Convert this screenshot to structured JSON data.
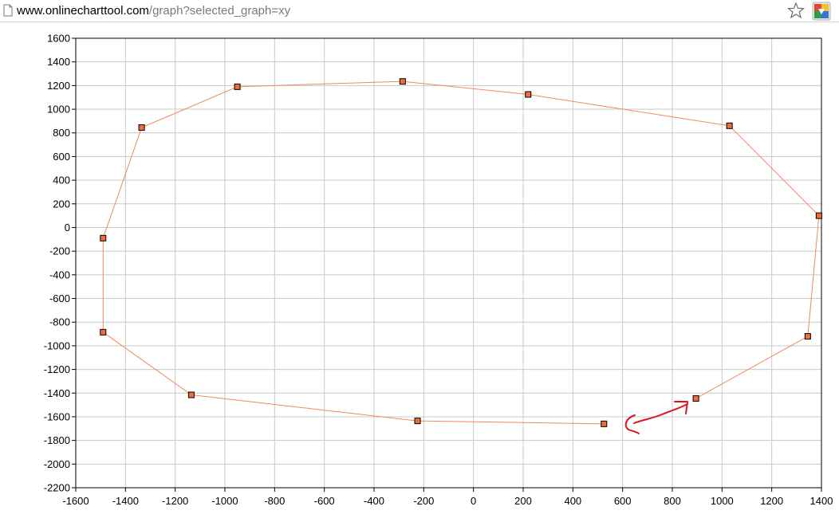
{
  "browser": {
    "url_domain": "www.onlinecharttool.com",
    "url_path": "/graph?selected_graph=xy",
    "icons": [
      "page-icon",
      "bookmark-star-icon",
      "extension-icon"
    ]
  },
  "colors": {
    "series_line": "#f08a5d",
    "marker_fill": "#f26b3a",
    "marker_border": "#000000",
    "grid": "#c8c8c8",
    "annotation": "#e0141e"
  },
  "chart_data": {
    "type": "scatter",
    "title": "",
    "xlabel": "",
    "ylabel": "",
    "xlim": [
      -1600,
      1400
    ],
    "ylim": [
      -2200,
      1600
    ],
    "x_ticks": [
      -1600,
      -1400,
      -1200,
      -1000,
      -800,
      -600,
      -400,
      -200,
      0,
      200,
      400,
      600,
      800,
      1000,
      1200,
      1400
    ],
    "y_ticks": [
      1600,
      1400,
      1200,
      1000,
      800,
      600,
      400,
      200,
      0,
      -200,
      -400,
      -600,
      -800,
      -1000,
      -1200,
      -1400,
      -1600,
      -1800,
      -2000,
      -2200
    ],
    "grid": true,
    "legend": "none",
    "connected": true,
    "marker": "square",
    "series": [
      {
        "points": [
          [
            525,
            -1660
          ],
          [
            -225,
            -1635
          ],
          [
            -1135,
            -1415
          ],
          [
            -1490,
            -885
          ],
          [
            -1490,
            -90
          ],
          [
            -1335,
            845
          ],
          [
            -950,
            1190
          ],
          [
            -285,
            1235
          ],
          [
            220,
            1125
          ],
          [
            1030,
            860
          ],
          [
            1390,
            100
          ],
          [
            1345,
            -920
          ],
          [
            895,
            -1445
          ]
        ]
      }
    ],
    "annotation": {
      "type": "hand-drawn-arrow",
      "description": "red freehand arrow pointing from the last point toward the first point"
    }
  }
}
